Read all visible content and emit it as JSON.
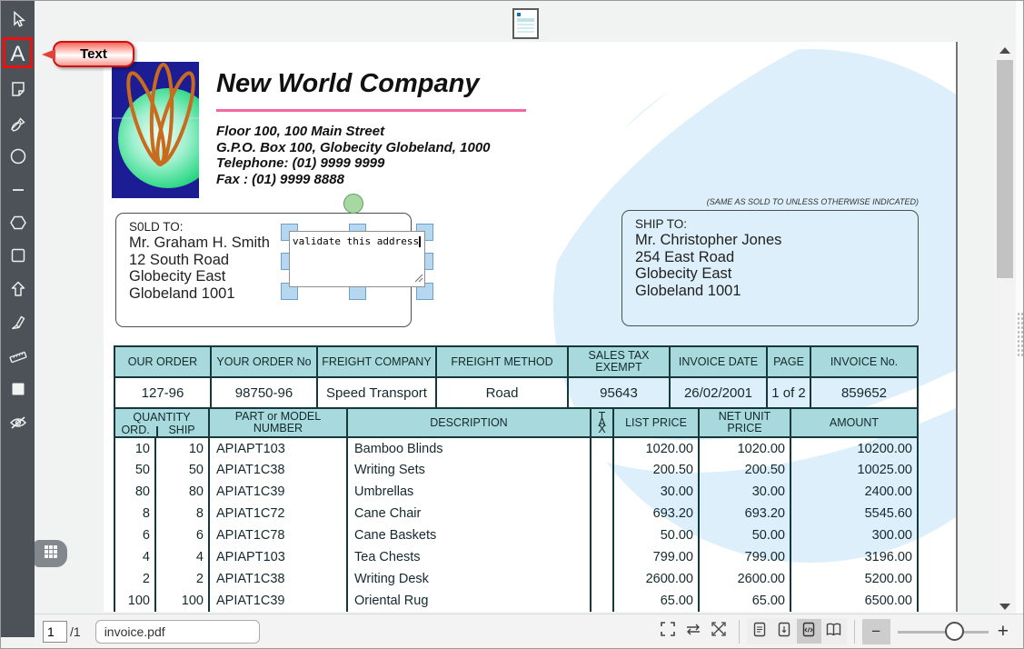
{
  "left_toolbar": {
    "tooltip": "Text",
    "selected_tool": "text",
    "tools": [
      "select",
      "text",
      "note",
      "pen",
      "ellipse",
      "line",
      "polygon",
      "rectangle",
      "arrow",
      "highlighter",
      "ruler",
      "fill",
      "hide-annotations"
    ]
  },
  "invoice": {
    "company_name": "New World Company",
    "company_address": "Floor 100, 100 Main Street\nG.P.O. Box 100, Globecity Globeland, 1000\nTelephone: (01) 9999 9999\nFax : (01) 9999 8888",
    "sold_to": {
      "label": "S0LD TO:",
      "lines": "Mr. Graham H. Smith\n12 South Road\nGlobecity East\nGlobeland 1001"
    },
    "ship_to": {
      "label": "SHIP TO:",
      "note": "(SAME AS SOLD TO UNLESS OTHERWISE INDICATED)",
      "lines": "Mr. Christopher Jones\n254 East Road\nGlobecity East\nGlobeland 1001"
    },
    "annotation_text": "validate this address",
    "order_table": {
      "headers": [
        "OUR ORDER",
        "YOUR ORDER No",
        "FREIGHT COMPANY",
        "FREIGHT METHOD",
        "SALES TAX\nEXEMPT",
        "INVOICE DATE",
        "PAGE",
        "INVOICE No."
      ],
      "values": [
        "127-96",
        "98750-96",
        "Speed Transport",
        "Road",
        "95643",
        "26/02/2001",
        "1 of 2",
        "859652"
      ]
    },
    "items_table": {
      "quantity_label": "QUANTITY",
      "ord_label": "ORD.",
      "ship_label": "SHIP",
      "part_label": "PART or MODEL\nNUMBER",
      "description_label": "DESCRIPTION",
      "tax_label": "T\nA\nX",
      "list_label": "LIST PRICE",
      "net_label": "NET UNIT\nPRICE",
      "amount_label": "AMOUNT",
      "rows": [
        {
          "ord": "10",
          "ship": "10",
          "part": "APIAPT103",
          "desc": "Bamboo Blinds",
          "tax": "",
          "list": "1020.00",
          "net": "1020.00",
          "amount": "10200.00"
        },
        {
          "ord": "50",
          "ship": "50",
          "part": "APIAT1C38",
          "desc": "Writing Sets",
          "tax": "",
          "list": "200.50",
          "net": "200.50",
          "amount": "10025.00"
        },
        {
          "ord": "80",
          "ship": "80",
          "part": "APIAT1C39",
          "desc": "Umbrellas",
          "tax": "",
          "list": "30.00",
          "net": "30.00",
          "amount": "2400.00"
        },
        {
          "ord": "8",
          "ship": "8",
          "part": "APIAT1C72",
          "desc": "Cane Chair",
          "tax": "",
          "list": "693.20",
          "net": "693.20",
          "amount": "5545.60"
        },
        {
          "ord": "6",
          "ship": "6",
          "part": "APIAT1C78",
          "desc": "Cane Baskets",
          "tax": "",
          "list": "50.00",
          "net": "50.00",
          "amount": "300.00"
        },
        {
          "ord": "4",
          "ship": "4",
          "part": "APIAPT103",
          "desc": "Tea Chests",
          "tax": "",
          "list": "799.00",
          "net": "799.00",
          "amount": "3196.00"
        },
        {
          "ord": "2",
          "ship": "2",
          "part": "APIAT1C38",
          "desc": "Writing Desk",
          "tax": "",
          "list": "2600.00",
          "net": "2600.00",
          "amount": "5200.00"
        },
        {
          "ord": "100",
          "ship": "100",
          "part": "APIAT1C39",
          "desc": "Oriental Rug",
          "tax": "",
          "list": "65.00",
          "net": "65.00",
          "amount": "6500.00"
        }
      ]
    }
  },
  "bottom_bar": {
    "page_value": "1",
    "page_total": "/1",
    "filename": "invoice.pdf",
    "minus_label": "−",
    "plus_label": "+"
  },
  "colors": {
    "toolbar_bg": "#4c5257",
    "selection_red": "#ea1111",
    "table_header_teal": "#a8d9dc",
    "pink_rule": "#f266a2",
    "watermark_blue": "#dcEFfa",
    "handle_blue": "#b5d7ef",
    "green_marker": "#a7d8a2"
  }
}
